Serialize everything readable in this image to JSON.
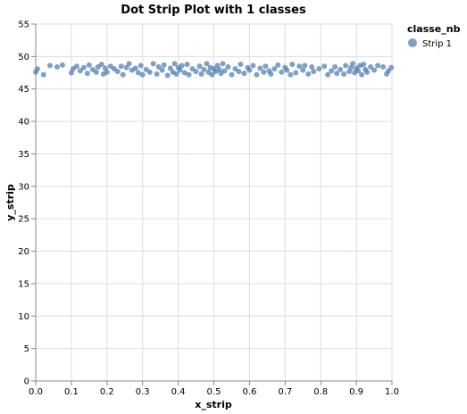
{
  "chart_data": {
    "type": "scatter",
    "title": "Dot Strip Plot with 1 classes",
    "xlabel": "x_strip",
    "ylabel": "y_strip",
    "xlim": [
      0,
      1
    ],
    "ylim": [
      0,
      55
    ],
    "x_ticks": [
      "0.0",
      "0.1",
      "0.2",
      "0.3",
      "0.4",
      "0.5",
      "0.6",
      "0.7",
      "0.8",
      "0.9",
      "1.0"
    ],
    "y_ticks": [
      "0",
      "5",
      "10",
      "15",
      "20",
      "25",
      "30",
      "35",
      "40",
      "45",
      "50",
      "55"
    ],
    "grid": true,
    "legend": {
      "title": "classe_nb",
      "placement": "top-right",
      "entries": [
        {
          "label": "Strip 1",
          "color": "#4c78a8"
        }
      ]
    },
    "series": [
      {
        "name": "Strip 1",
        "color": "#4c78a8",
        "points": [
          [
            0.0,
            47.6
          ],
          [
            0.005,
            48.1
          ],
          [
            0.022,
            47.2
          ],
          [
            0.04,
            48.6
          ],
          [
            0.06,
            48.4
          ],
          [
            0.075,
            48.7
          ],
          [
            0.1,
            47.5
          ],
          [
            0.105,
            48.1
          ],
          [
            0.115,
            48.5
          ],
          [
            0.125,
            47.8
          ],
          [
            0.135,
            48.3
          ],
          [
            0.145,
            47.4
          ],
          [
            0.15,
            48.7
          ],
          [
            0.16,
            48.0
          ],
          [
            0.17,
            47.6
          ],
          [
            0.175,
            48.4
          ],
          [
            0.185,
            48.8
          ],
          [
            0.19,
            47.3
          ],
          [
            0.195,
            48.2
          ],
          [
            0.2,
            47.6
          ],
          [
            0.21,
            48.5
          ],
          [
            0.22,
            48.1
          ],
          [
            0.23,
            47.7
          ],
          [
            0.24,
            48.5
          ],
          [
            0.245,
            47.2
          ],
          [
            0.255,
            48.3
          ],
          [
            0.262,
            48.9
          ],
          [
            0.27,
            47.9
          ],
          [
            0.28,
            48.2
          ],
          [
            0.288,
            47.5
          ],
          [
            0.295,
            48.6
          ],
          [
            0.3,
            47.2
          ],
          [
            0.31,
            48.0
          ],
          [
            0.32,
            47.6
          ],
          [
            0.33,
            48.9
          ],
          [
            0.34,
            47.3
          ],
          [
            0.345,
            48.4
          ],
          [
            0.355,
            47.9
          ],
          [
            0.36,
            48.7
          ],
          [
            0.37,
            47.1
          ],
          [
            0.378,
            48.2
          ],
          [
            0.385,
            47.6
          ],
          [
            0.39,
            48.9
          ],
          [
            0.395,
            47.3
          ],
          [
            0.4,
            48.3
          ],
          [
            0.405,
            47.9
          ],
          [
            0.41,
            48.6
          ],
          [
            0.418,
            47.5
          ],
          [
            0.425,
            48.8
          ],
          [
            0.43,
            47.2
          ],
          [
            0.44,
            48.1
          ],
          [
            0.45,
            47.7
          ],
          [
            0.46,
            48.5
          ],
          [
            0.465,
            47.3
          ],
          [
            0.472,
            48.0
          ],
          [
            0.48,
            48.9
          ],
          [
            0.485,
            47.6
          ],
          [
            0.49,
            48.3
          ],
          [
            0.495,
            47.2
          ],
          [
            0.5,
            48.1
          ],
          [
            0.505,
            47.7
          ],
          [
            0.51,
            48.6
          ],
          [
            0.515,
            48.0
          ],
          [
            0.52,
            47.4
          ],
          [
            0.525,
            48.9
          ],
          [
            0.53,
            47.8
          ],
          [
            0.54,
            48.4
          ],
          [
            0.55,
            47.2
          ],
          [
            0.56,
            48.1
          ],
          [
            0.57,
            47.7
          ],
          [
            0.575,
            48.8
          ],
          [
            0.585,
            47.4
          ],
          [
            0.595,
            48.3
          ],
          [
            0.6,
            47.9
          ],
          [
            0.61,
            48.6
          ],
          [
            0.62,
            47.2
          ],
          [
            0.63,
            48.2
          ],
          [
            0.64,
            47.6
          ],
          [
            0.645,
            48.5
          ],
          [
            0.655,
            47.8
          ],
          [
            0.66,
            47.3
          ],
          [
            0.67,
            48.1
          ],
          [
            0.68,
            48.7
          ],
          [
            0.69,
            47.6
          ],
          [
            0.7,
            48.3
          ],
          [
            0.705,
            47.9
          ],
          [
            0.715,
            47.2
          ],
          [
            0.72,
            48.8
          ],
          [
            0.73,
            47.5
          ],
          [
            0.74,
            48.5
          ],
          [
            0.75,
            47.9
          ],
          [
            0.755,
            48.6
          ],
          [
            0.765,
            47.3
          ],
          [
            0.775,
            48.4
          ],
          [
            0.78,
            47.7
          ],
          [
            0.795,
            48.1
          ],
          [
            0.81,
            48.5
          ],
          [
            0.82,
            47.2
          ],
          [
            0.83,
            47.8
          ],
          [
            0.84,
            48.4
          ],
          [
            0.845,
            47.4
          ],
          [
            0.855,
            48.0
          ],
          [
            0.865,
            47.3
          ],
          [
            0.87,
            48.6
          ],
          [
            0.88,
            47.7
          ],
          [
            0.885,
            48.3
          ],
          [
            0.89,
            48.9
          ],
          [
            0.895,
            47.5
          ],
          [
            0.9,
            48.2
          ],
          [
            0.905,
            47.8
          ],
          [
            0.91,
            48.6
          ],
          [
            0.915,
            47.2
          ],
          [
            0.92,
            48.8
          ],
          [
            0.925,
            48.0
          ],
          [
            0.93,
            47.6
          ],
          [
            0.94,
            48.4
          ],
          [
            0.95,
            47.9
          ],
          [
            0.96,
            48.6
          ],
          [
            0.975,
            48.4
          ],
          [
            0.985,
            47.3
          ],
          [
            0.99,
            47.8
          ],
          [
            0.998,
            48.3
          ]
        ]
      }
    ]
  }
}
